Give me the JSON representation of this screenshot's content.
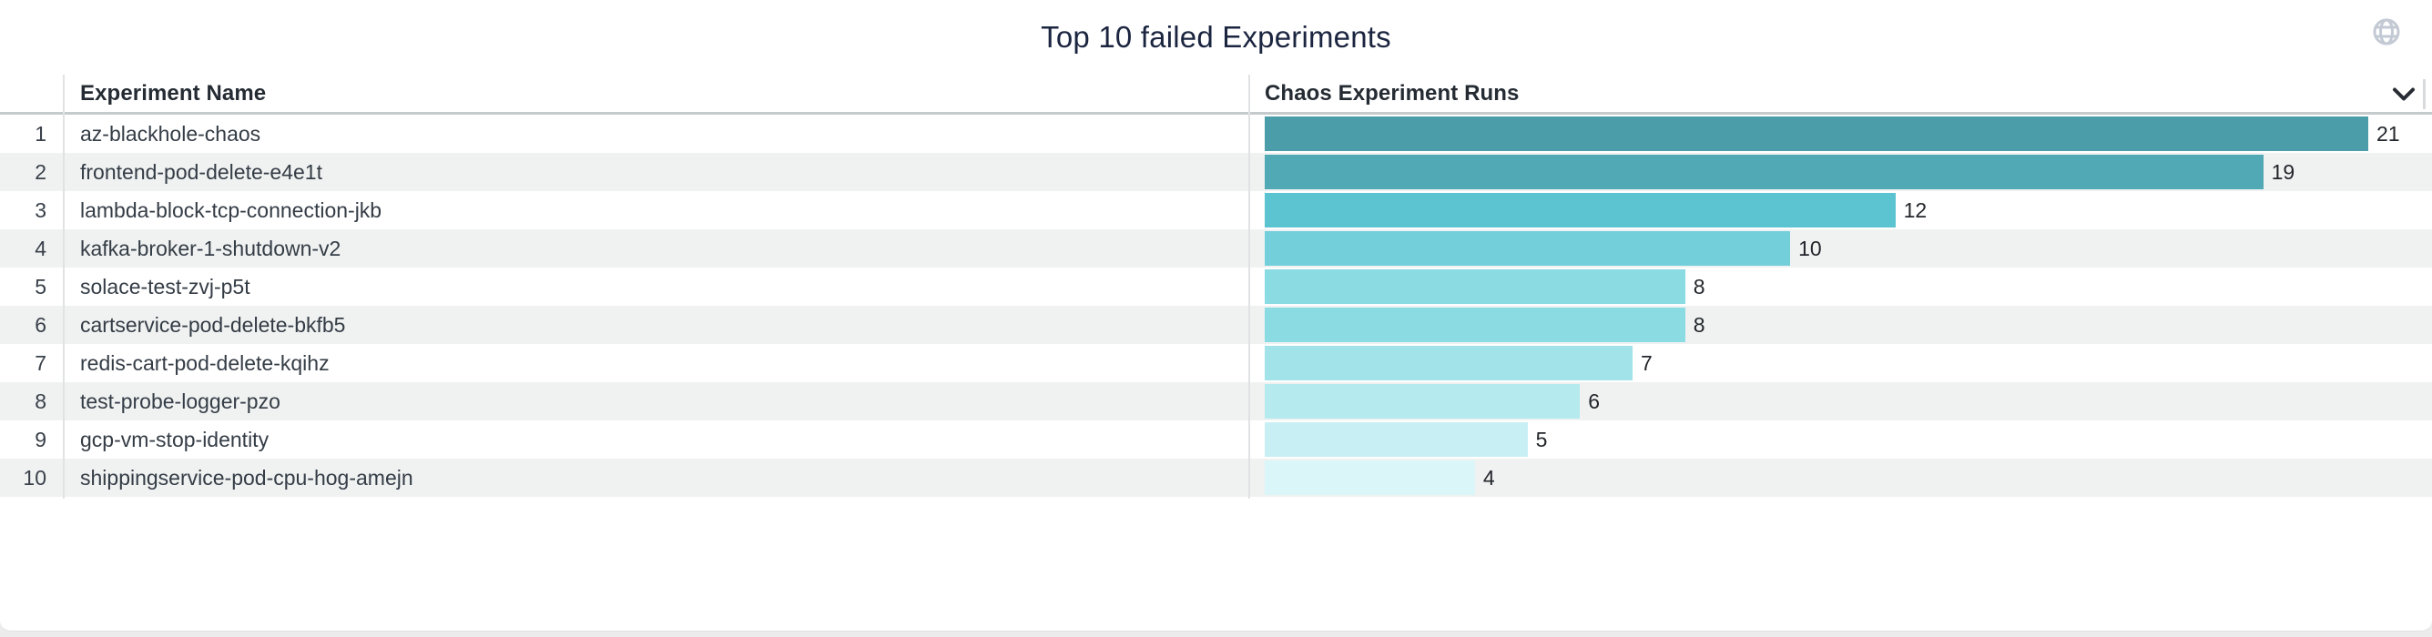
{
  "panel": {
    "title": "Top 10 failed Experiments",
    "globe_icon": "globe-icon",
    "sort_icon": "chevron-down-icon"
  },
  "table": {
    "columns": [
      {
        "label": "Experiment Name"
      },
      {
        "label": "Chaos Experiment Runs"
      }
    ],
    "rows": [
      {
        "rank": "1",
        "name": "az-blackhole-chaos",
        "runs": "21",
        "color": "#4B9EA9"
      },
      {
        "rank": "2",
        "name": "frontend-pod-delete-e4e1t",
        "runs": "19",
        "color": "#50A9B4"
      },
      {
        "rank": "3",
        "name": "lambda-block-tcp-connection-jkb",
        "runs": "12",
        "color": "#5CC4D0"
      },
      {
        "rank": "4",
        "name": "kafka-broker-1-shutdown-v2",
        "runs": "10",
        "color": "#73CFDA"
      },
      {
        "rank": "5",
        "name": "solace-test-zvj-p5t",
        "runs": "8",
        "color": "#8BDBE3"
      },
      {
        "rank": "6",
        "name": "cartservice-pod-delete-bkfb5",
        "runs": "8",
        "color": "#8BDBE3"
      },
      {
        "rank": "7",
        "name": "redis-cart-pod-delete-kqihz",
        "runs": "7",
        "color": "#A2E3E9"
      },
      {
        "rank": "8",
        "name": "test-probe-logger-pzo",
        "runs": "6",
        "color": "#B5EAEF"
      },
      {
        "rank": "9",
        "name": "gcp-vm-stop-identity",
        "runs": "5",
        "color": "#C8F0F4"
      },
      {
        "rank": "10",
        "name": "shippingservice-pod-cpu-hog-amejn",
        "runs": "4",
        "color": "#DBF6F9"
      }
    ]
  },
  "colors": {
    "title_text": "#1b2540",
    "header_text": "#252b33",
    "row_text": "#343c45",
    "stripe": "#f0f2f2",
    "header_border": "#c5cacd",
    "divider": "#e0e2e4",
    "globe_icon": "#c3cad4",
    "chevron_icon": "#272c33",
    "page_background": "#ececec"
  },
  "chart_data": {
    "type": "bar",
    "orientation": "horizontal",
    "title": "Top 10 failed Experiments",
    "xlabel": "Chaos Experiment Runs",
    "ylabel": "Experiment Name",
    "categories": [
      "az-blackhole-chaos",
      "frontend-pod-delete-e4e1t",
      "lambda-block-tcp-connection-jkb",
      "kafka-broker-1-shutdown-v2",
      "solace-test-zvj-p5t",
      "cartservice-pod-delete-bkfb5",
      "redis-cart-pod-delete-kqihz",
      "test-probe-logger-pzo",
      "gcp-vm-stop-identity",
      "shippingservice-pod-cpu-hog-amejn"
    ],
    "values": [
      21,
      19,
      12,
      10,
      8,
      8,
      7,
      6,
      5,
      4
    ],
    "xlim": [
      0,
      21
    ],
    "grid": false,
    "legend": false,
    "color_scale": "teal gradient, darker = higher value",
    "value_labels": "shown at end of each bar"
  }
}
